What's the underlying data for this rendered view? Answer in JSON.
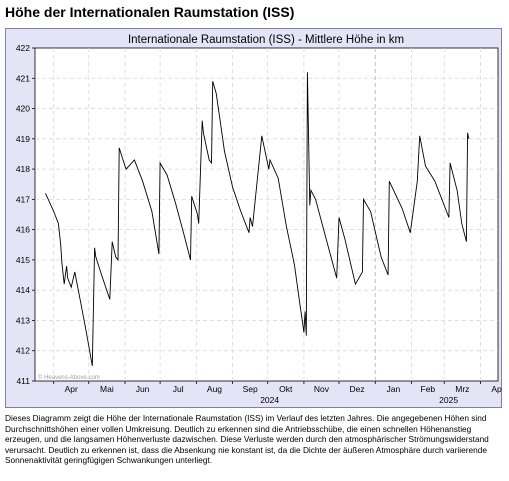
{
  "page_title": "Höhe der Internationalen Raumstation (ISS)",
  "description": "Dieses Diagramm zeigt die Höhe der Internationale Raumstation (ISS) im Verlauf des letzten Jahres. Die angegebenen Höhen sind Durchschnittshöhen einer vollen Umkreisung. Deutlich zu erkennen sind die Antriebsschübe, die einen schnellen Höhenanstieg erzeugen, und die langsamen Höhenverluste dazwischen. Diese Verluste werden durch den atmosphärischer Strömungswiderstand verursacht. Deutlich zu erkennen ist, dass die Absenkung nie konstant ist, da die Dichte der äußeren Atmosphäre durch variierende Sonnenaktivität geringfügigen Schwankungen unterliegt.",
  "chart_data": {
    "type": "line",
    "title": "Internationale Raumstation (ISS) - Mittlere Höhe in km",
    "xlabel": "",
    "ylabel": "",
    "watermark": "© Heavens-Above.com",
    "ylim": [
      411,
      422
    ],
    "yticks": [
      "411",
      "412",
      "413",
      "414",
      "415",
      "416",
      "417",
      "418",
      "419",
      "420",
      "421",
      "422"
    ],
    "month_labels": [
      "Apr",
      "Mai",
      "Jun",
      "Jul",
      "Aug",
      "Sep",
      "Okt",
      "Nov",
      "Dez",
      "Jan",
      "Feb",
      "Mrz",
      "Apr"
    ],
    "year_labels": [
      "2024",
      "2025"
    ],
    "grid": true,
    "line_color": "#000000",
    "series": [
      {
        "x": [
          "2024-03-25",
          "2024-04-01",
          "2024-04-05",
          "2024-04-07",
          "2024-04-08",
          "2024-04-10",
          "2024-04-12",
          "2024-04-13",
          "2024-04-16",
          "2024-04-19",
          "2024-04-25",
          "2024-04-29",
          "2024-05-04",
          "2024-05-06",
          "2024-05-07",
          "2024-05-12",
          "2024-05-19",
          "2024-05-21",
          "2024-05-24",
          "2024-05-26",
          "2024-05-27",
          "2024-06-01",
          "2024-06-02",
          "2024-06-09",
          "2024-06-16",
          "2024-06-24",
          "2024-06-30",
          "2024-07-01",
          "2024-07-07",
          "2024-07-14",
          "2024-07-21",
          "2024-07-27",
          "2024-07-28",
          "2024-08-02",
          "2024-08-03",
          "2024-08-06",
          "2024-08-07",
          "2024-08-12",
          "2024-08-14",
          "2024-08-15",
          "2024-08-18",
          "2024-08-21",
          "2024-08-25",
          "2024-09-01",
          "2024-09-08",
          "2024-09-15",
          "2024-09-16",
          "2024-09-18",
          "2024-09-26",
          "2024-10-02",
          "2024-10-03",
          "2024-10-10",
          "2024-10-17",
          "2024-10-22",
          "2024-10-24",
          "2024-10-28",
          "2024-10-31",
          "2024-11-01",
          "2024-11-02",
          "2024-11-03",
          "2024-11-04",
          "2024-11-06",
          "2024-11-07",
          "2024-11-11",
          "2024-11-20",
          "2024-11-29",
          "2024-12-01",
          "2024-12-06",
          "2024-12-15",
          "2024-12-21",
          "2024-12-22",
          "2024-12-28",
          "2025-01-06",
          "2025-01-12",
          "2025-01-13",
          "2025-01-24",
          "2025-01-31",
          "2025-02-06",
          "2025-02-08",
          "2025-02-13",
          "2025-02-21",
          "2025-03-01",
          "2025-03-05",
          "2025-03-06",
          "2025-03-12",
          "2025-03-16",
          "2025-03-20",
          "2025-03-21",
          "2025-03-22"
        ],
        "values": [
          417.2,
          416.6,
          416.2,
          415.5,
          414.9,
          414.2,
          414.8,
          414.4,
          414.1,
          414.6,
          413.4,
          412.6,
          411.5,
          415.4,
          415.1,
          414.5,
          413.7,
          415.6,
          415.1,
          415.0,
          418.7,
          418.1,
          418.0,
          418.3,
          417.6,
          416.6,
          415.2,
          418.2,
          417.8,
          416.9,
          415.9,
          415.0,
          417.1,
          416.5,
          416.2,
          419.6,
          419.2,
          418.3,
          418.2,
          420.9,
          420.5,
          419.7,
          418.6,
          417.4,
          416.6,
          415.9,
          416.4,
          416.1,
          419.1,
          418.0,
          418.3,
          417.7,
          416.1,
          415.2,
          414.8,
          413.7,
          412.9,
          412.6,
          413.3,
          412.5,
          421.2,
          416.8,
          417.3,
          417.0,
          415.7,
          414.4,
          416.4,
          415.7,
          414.2,
          414.6,
          417.0,
          416.6,
          415.1,
          414.5,
          417.6,
          416.7,
          415.9,
          417.6,
          419.1,
          418.1,
          417.6,
          416.8,
          416.4,
          418.2,
          417.3,
          416.2,
          415.6,
          419.2,
          419.0
        ]
      }
    ]
  }
}
